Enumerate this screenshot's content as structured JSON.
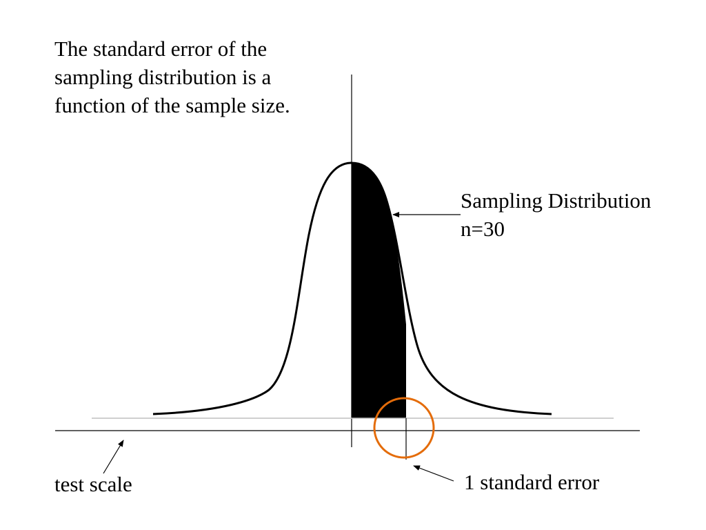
{
  "heading": {
    "lines": [
      "The standard error of the",
      "sampling distribution is a",
      "function of the sample size."
    ]
  },
  "distribution_label": {
    "line1": "Sampling Distribution",
    "line2": "n=30"
  },
  "scale_label": "test scale",
  "standard_error_label": "1 standard error",
  "colors": {
    "curve": "#000000",
    "shaded_region": "#000000",
    "baseline": "#bfbfbf",
    "highlight_circle": "#e46c0a",
    "background": "#ffffff"
  }
}
